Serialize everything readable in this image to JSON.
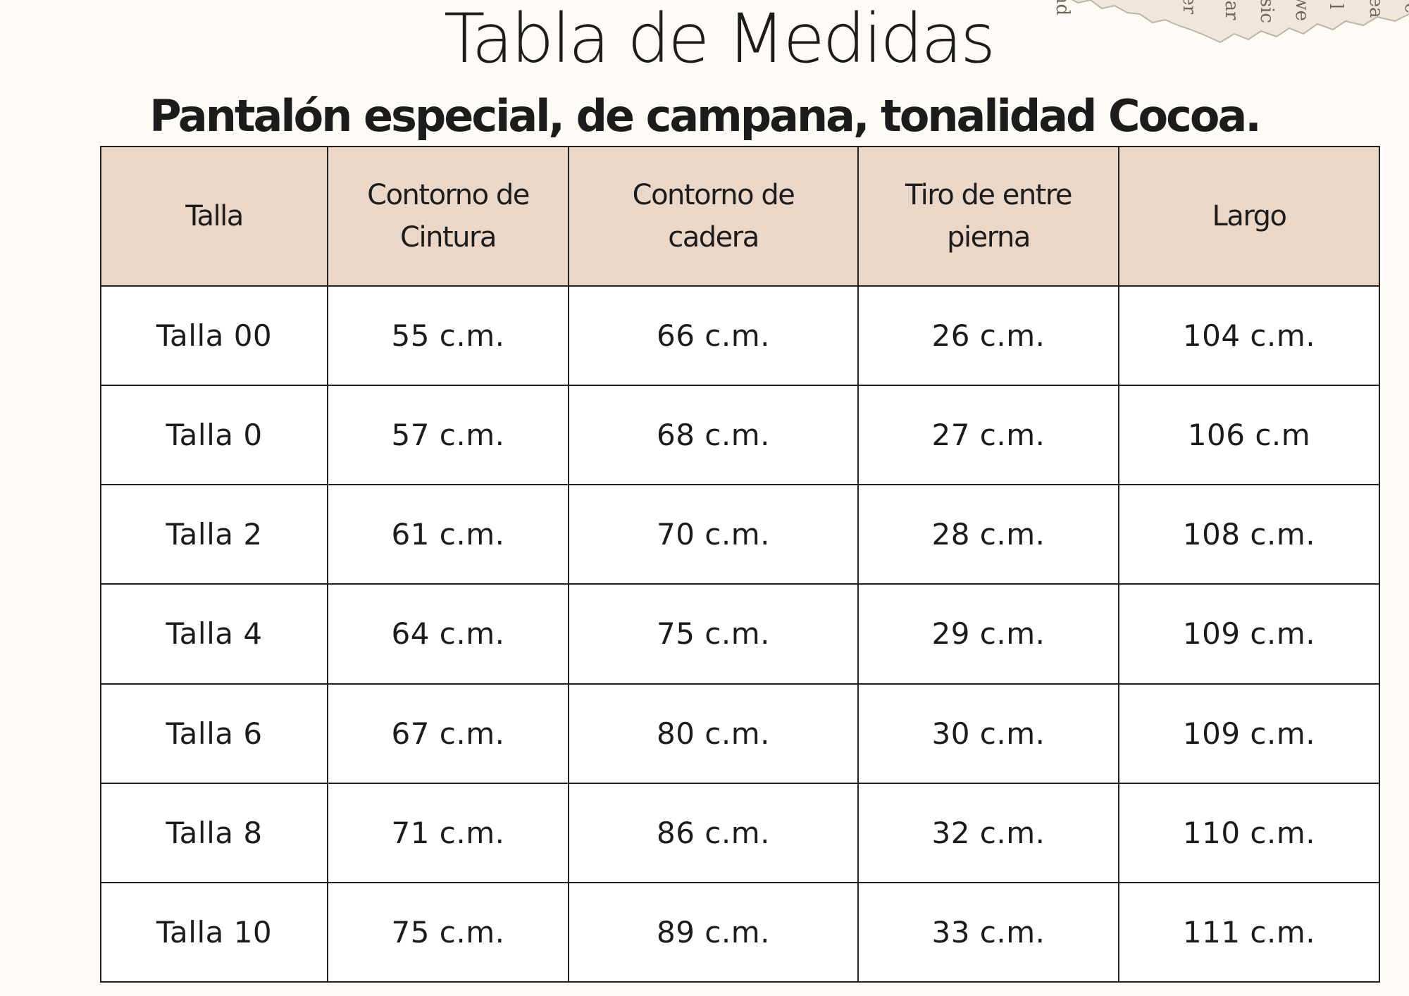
{
  "title": "Tabla de Medidas",
  "subtitle": "Pantalón especial, de campana, tonalidad Cocoa.",
  "colors": {
    "page_background": "#fefbf6",
    "header_background": "#ead7c7",
    "border": "#222222"
  },
  "table": {
    "headers": [
      [
        "Talla"
      ],
      [
        "Contorno de",
        "Cintura"
      ],
      [
        "Contorno de",
        "cadera"
      ],
      [
        "Tiro de entre",
        "pierna"
      ],
      [
        "Largo"
      ]
    ],
    "rows": [
      [
        "Talla 00",
        "55 c.m.",
        "66 c.m.",
        "26 c.m.",
        "104 c.m."
      ],
      [
        "Talla 0",
        "57 c.m.",
        "68 c.m.",
        "27 c.m.",
        "106 c.m"
      ],
      [
        "Talla 2",
        "61 c.m.",
        "70 c.m.",
        "28 c.m.",
        "108 c.m."
      ],
      [
        "Talla 4",
        "64 c.m.",
        "75 c.m.",
        "29 c.m.",
        "109 c.m."
      ],
      [
        "Talla 6",
        "67 c.m.",
        "80 c.m.",
        "30 c.m.",
        "109 c.m."
      ],
      [
        "Talla 8",
        "71 c.m.",
        "86 c.m.",
        "32 c.m.",
        "110 c.m."
      ],
      [
        "Talla 10",
        "75 c.m.",
        "89 c.m.",
        "33 c.m.",
        "111 c.m."
      ]
    ]
  }
}
